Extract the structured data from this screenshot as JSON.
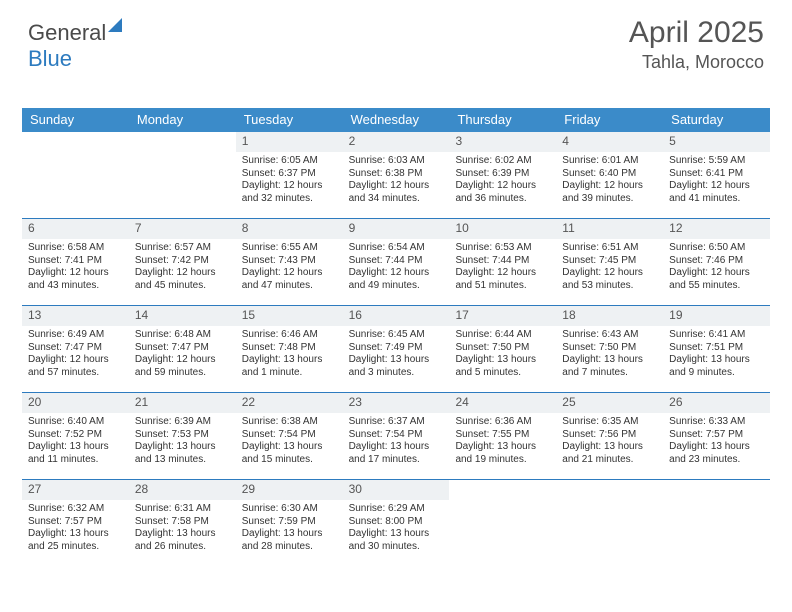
{
  "brand": {
    "name1": "General",
    "name2": "Blue"
  },
  "header": {
    "title": "April 2025",
    "location": "Tahla, Morocco"
  },
  "colors": {
    "header_bar": "#3b8bc9",
    "accent": "#2d7bbf",
    "daynum_bg": "#eef1f3",
    "text": "#333333",
    "muted": "#555555",
    "bg": "#ffffff"
  },
  "daysOfWeek": [
    "Sunday",
    "Monday",
    "Tuesday",
    "Wednesday",
    "Thursday",
    "Friday",
    "Saturday"
  ],
  "weeks": [
    [
      {
        "blank": true
      },
      {
        "blank": true
      },
      {
        "day": 1,
        "sunrise": "6:05 AM",
        "sunset": "6:37 PM",
        "daylight": "12 hours and 32 minutes."
      },
      {
        "day": 2,
        "sunrise": "6:03 AM",
        "sunset": "6:38 PM",
        "daylight": "12 hours and 34 minutes."
      },
      {
        "day": 3,
        "sunrise": "6:02 AM",
        "sunset": "6:39 PM",
        "daylight": "12 hours and 36 minutes."
      },
      {
        "day": 4,
        "sunrise": "6:01 AM",
        "sunset": "6:40 PM",
        "daylight": "12 hours and 39 minutes."
      },
      {
        "day": 5,
        "sunrise": "5:59 AM",
        "sunset": "6:41 PM",
        "daylight": "12 hours and 41 minutes."
      }
    ],
    [
      {
        "day": 6,
        "sunrise": "6:58 AM",
        "sunset": "7:41 PM",
        "daylight": "12 hours and 43 minutes."
      },
      {
        "day": 7,
        "sunrise": "6:57 AM",
        "sunset": "7:42 PM",
        "daylight": "12 hours and 45 minutes."
      },
      {
        "day": 8,
        "sunrise": "6:55 AM",
        "sunset": "7:43 PM",
        "daylight": "12 hours and 47 minutes."
      },
      {
        "day": 9,
        "sunrise": "6:54 AM",
        "sunset": "7:44 PM",
        "daylight": "12 hours and 49 minutes."
      },
      {
        "day": 10,
        "sunrise": "6:53 AM",
        "sunset": "7:44 PM",
        "daylight": "12 hours and 51 minutes."
      },
      {
        "day": 11,
        "sunrise": "6:51 AM",
        "sunset": "7:45 PM",
        "daylight": "12 hours and 53 minutes."
      },
      {
        "day": 12,
        "sunrise": "6:50 AM",
        "sunset": "7:46 PM",
        "daylight": "12 hours and 55 minutes."
      }
    ],
    [
      {
        "day": 13,
        "sunrise": "6:49 AM",
        "sunset": "7:47 PM",
        "daylight": "12 hours and 57 minutes."
      },
      {
        "day": 14,
        "sunrise": "6:48 AM",
        "sunset": "7:47 PM",
        "daylight": "12 hours and 59 minutes."
      },
      {
        "day": 15,
        "sunrise": "6:46 AM",
        "sunset": "7:48 PM",
        "daylight": "13 hours and 1 minute."
      },
      {
        "day": 16,
        "sunrise": "6:45 AM",
        "sunset": "7:49 PM",
        "daylight": "13 hours and 3 minutes."
      },
      {
        "day": 17,
        "sunrise": "6:44 AM",
        "sunset": "7:50 PM",
        "daylight": "13 hours and 5 minutes."
      },
      {
        "day": 18,
        "sunrise": "6:43 AM",
        "sunset": "7:50 PM",
        "daylight": "13 hours and 7 minutes."
      },
      {
        "day": 19,
        "sunrise": "6:41 AM",
        "sunset": "7:51 PM",
        "daylight": "13 hours and 9 minutes."
      }
    ],
    [
      {
        "day": 20,
        "sunrise": "6:40 AM",
        "sunset": "7:52 PM",
        "daylight": "13 hours and 11 minutes."
      },
      {
        "day": 21,
        "sunrise": "6:39 AM",
        "sunset": "7:53 PM",
        "daylight": "13 hours and 13 minutes."
      },
      {
        "day": 22,
        "sunrise": "6:38 AM",
        "sunset": "7:54 PM",
        "daylight": "13 hours and 15 minutes."
      },
      {
        "day": 23,
        "sunrise": "6:37 AM",
        "sunset": "7:54 PM",
        "daylight": "13 hours and 17 minutes."
      },
      {
        "day": 24,
        "sunrise": "6:36 AM",
        "sunset": "7:55 PM",
        "daylight": "13 hours and 19 minutes."
      },
      {
        "day": 25,
        "sunrise": "6:35 AM",
        "sunset": "7:56 PM",
        "daylight": "13 hours and 21 minutes."
      },
      {
        "day": 26,
        "sunrise": "6:33 AM",
        "sunset": "7:57 PM",
        "daylight": "13 hours and 23 minutes."
      }
    ],
    [
      {
        "day": 27,
        "sunrise": "6:32 AM",
        "sunset": "7:57 PM",
        "daylight": "13 hours and 25 minutes."
      },
      {
        "day": 28,
        "sunrise": "6:31 AM",
        "sunset": "7:58 PM",
        "daylight": "13 hours and 26 minutes."
      },
      {
        "day": 29,
        "sunrise": "6:30 AM",
        "sunset": "7:59 PM",
        "daylight": "13 hours and 28 minutes."
      },
      {
        "day": 30,
        "sunrise": "6:29 AM",
        "sunset": "8:00 PM",
        "daylight": "13 hours and 30 minutes."
      },
      {
        "blank": true
      },
      {
        "blank": true
      },
      {
        "blank": true
      }
    ]
  ],
  "labels": {
    "sunrise": "Sunrise:",
    "sunset": "Sunset:",
    "daylight": "Daylight:"
  }
}
